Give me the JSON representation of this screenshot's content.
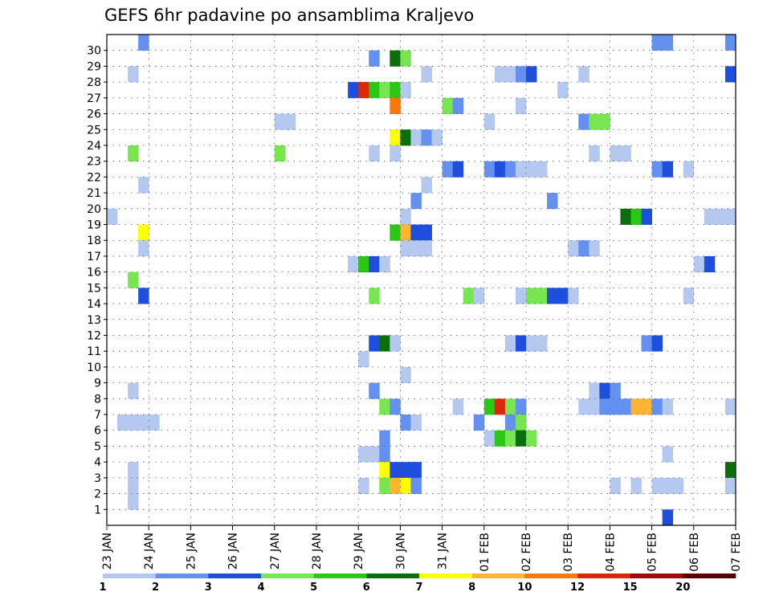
{
  "chart_data": {
    "type": "heatmap",
    "title": "GEFS 6hr padavine po ansamblima Kraljevo",
    "y_ticks": [
      "1",
      "2",
      "3",
      "4",
      "5",
      "6",
      "7",
      "8",
      "9",
      "10",
      "11",
      "12",
      "13",
      "14",
      "15",
      "16",
      "17",
      "18",
      "19",
      "20",
      "21",
      "22",
      "23",
      "24",
      "25",
      "26",
      "27",
      "28",
      "29",
      "30"
    ],
    "x_ticks": [
      "23 JAN",
      "24 JAN",
      "25 JAN",
      "26 JAN",
      "27 JAN",
      "28 JAN",
      "29 JAN",
      "30 JAN",
      "31 JAN",
      "01 FEB",
      "02 FEB",
      "03 FEB",
      "04 FEB",
      "05 FEB",
      "06 FEB",
      "07 FEB"
    ],
    "legend": {
      "levels": [
        "1",
        "2",
        "3",
        "4",
        "5",
        "6",
        "7",
        "8",
        "10",
        "12",
        "15",
        "20"
      ],
      "colors": [
        "#b4c8f0",
        "#6490f0",
        "#1e4fdc",
        "#78e650",
        "#28c814",
        "#0a6e0a",
        "#ffff00",
        "#ffb432",
        "#fa780a",
        "#dc280a",
        "#a00a0a",
        "#5a0000"
      ]
    },
    "color_index_note": "cells: [member, time_step_6h_from_23JAN00, color_index]",
    "cells": [
      [
        30,
        3,
        1
      ],
      [
        30,
        52,
        1
      ],
      [
        30,
        53,
        1
      ],
      [
        30,
        59,
        1
      ],
      [
        29,
        25,
        1
      ],
      [
        29,
        27,
        5
      ],
      [
        29,
        28,
        3
      ],
      [
        28,
        2,
        0
      ],
      [
        28,
        30,
        0
      ],
      [
        28,
        37,
        0
      ],
      [
        28,
        38,
        0
      ],
      [
        28,
        39,
        1
      ],
      [
        28,
        40,
        2
      ],
      [
        28,
        45,
        0
      ],
      [
        28,
        59,
        2
      ],
      [
        27,
        23,
        2
      ],
      [
        27,
        24,
        9
      ],
      [
        27,
        25,
        4
      ],
      [
        27,
        26,
        3
      ],
      [
        27,
        27,
        4
      ],
      [
        27,
        28,
        0
      ],
      [
        27,
        43,
        0
      ],
      [
        26,
        27,
        8
      ],
      [
        26,
        32,
        3
      ],
      [
        26,
        33,
        1
      ],
      [
        26,
        39,
        0
      ],
      [
        25,
        16,
        0
      ],
      [
        25,
        17,
        0
      ],
      [
        25,
        36,
        0
      ],
      [
        25,
        45,
        1
      ],
      [
        25,
        46,
        3
      ],
      [
        25,
        47,
        3
      ],
      [
        24,
        27,
        6
      ],
      [
        24,
        28,
        5
      ],
      [
        24,
        29,
        0
      ],
      [
        24,
        30,
        1
      ],
      [
        24,
        31,
        0
      ],
      [
        23,
        2,
        3
      ],
      [
        23,
        16,
        3
      ],
      [
        23,
        25,
        0
      ],
      [
        23,
        27,
        0
      ],
      [
        23,
        46,
        0
      ],
      [
        23,
        48,
        0
      ],
      [
        23,
        49,
        0
      ],
      [
        22,
        32,
        1
      ],
      [
        22,
        33,
        2
      ],
      [
        22,
        36,
        1
      ],
      [
        22,
        37,
        2
      ],
      [
        22,
        38,
        1
      ],
      [
        22,
        39,
        0
      ],
      [
        22,
        40,
        0
      ],
      [
        22,
        41,
        0
      ],
      [
        22,
        52,
        1
      ],
      [
        22,
        53,
        2
      ],
      [
        22,
        55,
        0
      ],
      [
        21,
        3,
        0
      ],
      [
        21,
        30,
        0
      ],
      [
        20,
        29,
        1
      ],
      [
        20,
        42,
        1
      ],
      [
        19,
        0,
        0
      ],
      [
        19,
        28,
        0
      ],
      [
        19,
        49,
        5
      ],
      [
        19,
        50,
        4
      ],
      [
        19,
        51,
        2
      ],
      [
        19,
        57,
        0
      ],
      [
        19,
        58,
        0
      ],
      [
        19,
        59,
        0
      ],
      [
        18,
        3,
        6
      ],
      [
        18,
        27,
        4
      ],
      [
        18,
        28,
        7
      ],
      [
        18,
        29,
        2
      ],
      [
        18,
        30,
        2
      ],
      [
        17,
        3,
        0
      ],
      [
        17,
        28,
        0
      ],
      [
        17,
        29,
        0
      ],
      [
        17,
        30,
        0
      ],
      [
        17,
        44,
        0
      ],
      [
        17,
        45,
        1
      ],
      [
        17,
        46,
        0
      ],
      [
        16,
        23,
        0
      ],
      [
        16,
        24,
        4
      ],
      [
        16,
        25,
        2
      ],
      [
        16,
        26,
        0
      ],
      [
        16,
        56,
        0
      ],
      [
        16,
        57,
        2
      ],
      [
        15,
        2,
        3
      ],
      [
        14,
        3,
        2
      ],
      [
        14,
        25,
        3
      ],
      [
        14,
        34,
        3
      ],
      [
        14,
        35,
        0
      ],
      [
        14,
        39,
        0
      ],
      [
        14,
        40,
        3
      ],
      [
        14,
        41,
        3
      ],
      [
        14,
        42,
        2
      ],
      [
        14,
        43,
        2
      ],
      [
        14,
        44,
        0
      ],
      [
        14,
        55,
        0
      ],
      [
        11,
        25,
        2
      ],
      [
        11,
        26,
        5
      ],
      [
        11,
        27,
        0
      ],
      [
        11,
        38,
        0
      ],
      [
        11,
        39,
        2
      ],
      [
        11,
        40,
        0
      ],
      [
        11,
        41,
        0
      ],
      [
        11,
        51,
        1
      ],
      [
        11,
        52,
        2
      ],
      [
        10,
        24,
        0
      ],
      [
        9,
        28,
        0
      ],
      [
        8,
        2,
        0
      ],
      [
        8,
        25,
        1
      ],
      [
        8,
        46,
        0
      ],
      [
        8,
        47,
        2
      ],
      [
        8,
        48,
        1
      ],
      [
        7,
        26,
        3
      ],
      [
        7,
        27,
        1
      ],
      [
        7,
        33,
        0
      ],
      [
        7,
        36,
        4
      ],
      [
        7,
        37,
        9
      ],
      [
        7,
        38,
        3
      ],
      [
        7,
        39,
        1
      ],
      [
        7,
        45,
        0
      ],
      [
        7,
        46,
        0
      ],
      [
        7,
        47,
        1
      ],
      [
        7,
        48,
        1
      ],
      [
        7,
        49,
        1
      ],
      [
        7,
        50,
        7
      ],
      [
        7,
        51,
        7
      ],
      [
        7,
        52,
        1
      ],
      [
        7,
        53,
        0
      ],
      [
        7,
        59,
        0
      ],
      [
        6,
        1,
        0
      ],
      [
        6,
        2,
        0
      ],
      [
        6,
        3,
        0
      ],
      [
        6,
        4,
        0
      ],
      [
        6,
        28,
        1
      ],
      [
        6,
        29,
        0
      ],
      [
        6,
        35,
        1
      ],
      [
        6,
        38,
        1
      ],
      [
        6,
        39,
        3
      ],
      [
        5,
        26,
        1
      ],
      [
        5,
        36,
        0
      ],
      [
        5,
        37,
        4
      ],
      [
        5,
        38,
        3
      ],
      [
        5,
        39,
        5
      ],
      [
        5,
        40,
        3
      ],
      [
        4,
        24,
        0
      ],
      [
        4,
        25,
        0
      ],
      [
        4,
        26,
        1
      ],
      [
        4,
        53,
        0
      ],
      [
        3,
        2,
        0
      ],
      [
        3,
        26,
        6
      ],
      [
        3,
        27,
        2
      ],
      [
        3,
        28,
        2
      ],
      [
        3,
        29,
        2
      ],
      [
        3,
        59,
        5
      ],
      [
        2,
        2,
        0
      ],
      [
        2,
        24,
        0
      ],
      [
        2,
        26,
        3
      ],
      [
        2,
        27,
        7
      ],
      [
        2,
        28,
        6
      ],
      [
        2,
        29,
        1
      ],
      [
        2,
        48,
        0
      ],
      [
        2,
        50,
        0
      ],
      [
        2,
        52,
        0
      ],
      [
        2,
        53,
        0
      ],
      [
        2,
        54,
        0
      ],
      [
        2,
        59,
        0
      ],
      [
        1,
        2,
        0
      ],
      [
        0,
        53,
        2
      ]
    ]
  }
}
